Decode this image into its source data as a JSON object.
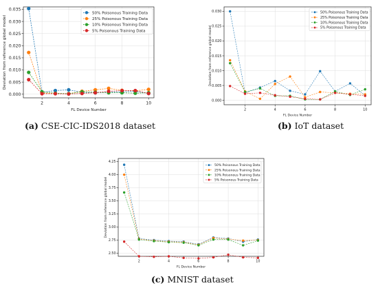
{
  "chart_data": [
    {
      "type": "line",
      "caption_letter": "(a)",
      "caption_text": "CSE-CIC-IDS2018 dataset",
      "xlabel": "FL Device Number",
      "ylabel": "Deviation from reference global model",
      "xlim": [
        0.6,
        10.4
      ],
      "ylim": [
        -0.0015,
        0.036
      ],
      "xticks": [
        2,
        4,
        6,
        8,
        10
      ],
      "yticks": [
        0.0,
        0.005,
        0.01,
        0.015,
        0.02,
        0.025,
        0.03,
        0.035
      ],
      "ytick_labels": [
        "0.000",
        "0.005",
        "0.010",
        "0.015",
        "0.020",
        "0.025",
        "0.030",
        "0.035"
      ],
      "grid": true,
      "legend_position": "top-right",
      "x": [
        1,
        2,
        3,
        4,
        5,
        6,
        7,
        8,
        9,
        10
      ],
      "series": [
        {
          "name": "50% Poisonous Training Data",
          "color": "#1f77b4",
          "values": [
            0.0353,
            0.0008,
            0.0015,
            0.0018,
            0.0008,
            0.0006,
            0.0008,
            0.001,
            0.0012,
            0.0003
          ]
        },
        {
          "name": "25% Poisonous Training Data",
          "color": "#ff7f0e",
          "values": [
            0.0172,
            0.0005,
            0.0003,
            0.0002,
            0.0012,
            0.0018,
            0.0024,
            0.0016,
            0.0014,
            0.002
          ]
        },
        {
          "name": "10% Poisonous Training Data",
          "color": "#2ca02c",
          "values": [
            0.009,
            0.001,
            0.0004,
            0.0002,
            0.001,
            0.0008,
            0.0006,
            0.0006,
            0.0004,
            0.0006
          ]
        },
        {
          "name": "5% Poisonous Training Data",
          "color": "#d62728",
          "values": [
            0.006,
            0.0002,
            0.0002,
            0.0001,
            0.0003,
            0.0006,
            0.0012,
            0.0015,
            0.0015,
            0.0003
          ]
        }
      ]
    },
    {
      "type": "line",
      "caption_letter": "(b)",
      "caption_text": "IoT dataset",
      "xlabel": "FL Device Number",
      "ylabel": "Deviation from reference global model",
      "xlim": [
        0.6,
        10.4
      ],
      "ylim": [
        -0.0015,
        0.0315
      ],
      "xticks": [
        2,
        4,
        6,
        8,
        10
      ],
      "yticks": [
        0.0,
        0.005,
        0.01,
        0.015,
        0.02,
        0.025,
        0.03
      ],
      "ytick_labels": [
        "0.000",
        "0.005",
        "0.010",
        "0.015",
        "0.020",
        "0.025",
        "0.030"
      ],
      "grid": true,
      "legend_position": "top-right",
      "x": [
        1,
        2,
        3,
        4,
        5,
        6,
        7,
        8,
        9,
        10
      ],
      "series": [
        {
          "name": "50% Poisonous Training Data",
          "color": "#1f77b4",
          "values": [
            0.03,
            0.0025,
            0.0043,
            0.0065,
            0.0032,
            0.002,
            0.0098,
            0.003,
            0.0057,
            0.0016
          ]
        },
        {
          "name": "25% Poisonous Training Data",
          "color": "#ff7f0e",
          "values": [
            0.0135,
            0.003,
            0.0005,
            0.0055,
            0.008,
            0.001,
            0.0028,
            0.0025,
            0.0022,
            0.002
          ]
        },
        {
          "name": "10% Poisonous Training Data",
          "color": "#2ca02c",
          "values": [
            0.0125,
            0.0028,
            0.004,
            0.0015,
            0.0015,
            0.0003,
            0.0003,
            0.003,
            0.0018,
            0.0037
          ]
        },
        {
          "name": "5% Poisonous Training Data",
          "color": "#d62728",
          "values": [
            0.0048,
            0.0022,
            0.0025,
            0.0017,
            0.0012,
            0.0005,
            0.0003,
            0.0025,
            0.002,
            0.0015
          ]
        }
      ]
    },
    {
      "type": "line",
      "caption_letter": "(c)",
      "caption_text": "MNIST dataset",
      "xlabel": "FL Device Number",
      "ylabel": "Deviation from reference global model",
      "xlim": [
        0.6,
        10.4
      ],
      "ylim": [
        2.44,
        4.31
      ],
      "xticks": [
        2,
        4,
        6,
        8,
        10
      ],
      "yticks": [
        2.5,
        2.75,
        3.0,
        3.25,
        3.5,
        3.75,
        4.0,
        4.25
      ],
      "ytick_labels": [
        "2.50",
        "2.75",
        "3.00",
        "3.25",
        "3.50",
        "3.75",
        "4.00",
        "4.25"
      ],
      "grid": true,
      "legend_position": "top-right",
      "x": [
        1,
        2,
        3,
        4,
        5,
        6,
        7,
        8,
        9,
        10
      ],
      "series": [
        {
          "name": "50% Poisonous Training Data",
          "color": "#1f77b4",
          "values": [
            4.19,
            2.78,
            2.75,
            2.73,
            2.72,
            2.67,
            2.8,
            2.78,
            2.72,
            2.76
          ]
        },
        {
          "name": "25% Poisonous Training Data",
          "color": "#ff7f0e",
          "values": [
            4.0,
            2.77,
            2.74,
            2.72,
            2.71,
            2.66,
            2.79,
            2.77,
            2.74,
            2.75
          ]
        },
        {
          "name": "10% Poisonous Training Data",
          "color": "#2ca02c",
          "values": [
            3.66,
            2.76,
            2.73,
            2.71,
            2.7,
            2.65,
            2.76,
            2.76,
            2.65,
            2.74
          ]
        },
        {
          "name": "5% Poisonous Training Data",
          "color": "#d62728",
          "values": [
            2.72,
            2.44,
            2.43,
            2.44,
            2.41,
            2.4,
            2.42,
            2.47,
            2.42,
            2.41
          ]
        }
      ]
    }
  ]
}
